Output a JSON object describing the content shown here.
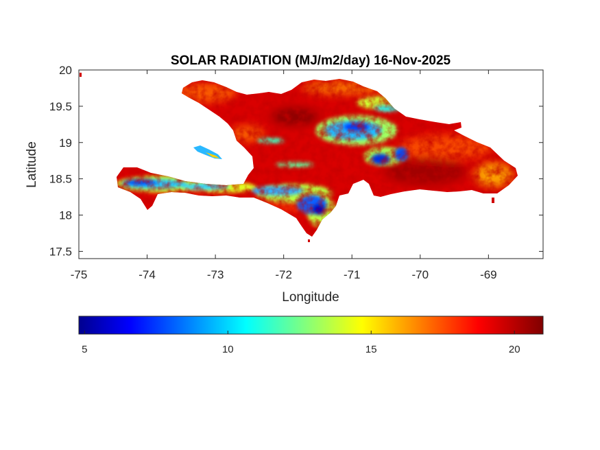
{
  "map": {
    "title": "SOLAR RADIATION (MJ/m2/day) 16-Nov-2025",
    "xlabel": "Longitude",
    "ylabel": "Latitude",
    "xlim": [
      -75,
      -68.2
    ],
    "ylim": [
      17.4,
      20
    ],
    "xticks": [
      -75,
      -74,
      -73,
      -72,
      -71,
      -70,
      -69
    ],
    "xtick_labels": [
      "-75",
      "-74",
      "-73",
      "-72",
      "-71",
      "-70",
      "-69"
    ],
    "yticks": [
      17.5,
      18,
      18.5,
      19,
      19.5,
      20
    ],
    "ytick_labels": [
      "17.5",
      "18",
      "18.5",
      "19",
      "19.5",
      "20"
    ],
    "region": "Hispaniola (Haiti and Dominican Republic)"
  },
  "colorbar": {
    "colormap": "jet",
    "range": [
      4.8,
      21
    ],
    "ticks": [
      5,
      10,
      15,
      20
    ],
    "tick_labels": [
      "5",
      "10",
      "15",
      "20"
    ],
    "colors": [
      "#00008f",
      "#0000ff",
      "#00ffff",
      "#ffff00",
      "#ff0000",
      "#800000"
    ]
  },
  "fields": {
    "dominant_value": 19.5,
    "low_zones": [
      {
        "name": "Tiburon peninsula south coast",
        "lon": -73.8,
        "lat": 18.35,
        "value": 9
      },
      {
        "name": "Cordillera Central",
        "lon": -70.9,
        "lat": 19.0,
        "value": 9
      },
      {
        "name": "Sierra de Bahoruco",
        "lon": -71.5,
        "lat": 18.15,
        "value": 8
      },
      {
        "name": "Cordillera Septentrional",
        "lon": -70.6,
        "lat": 19.5,
        "value": 12
      }
    ]
  }
}
